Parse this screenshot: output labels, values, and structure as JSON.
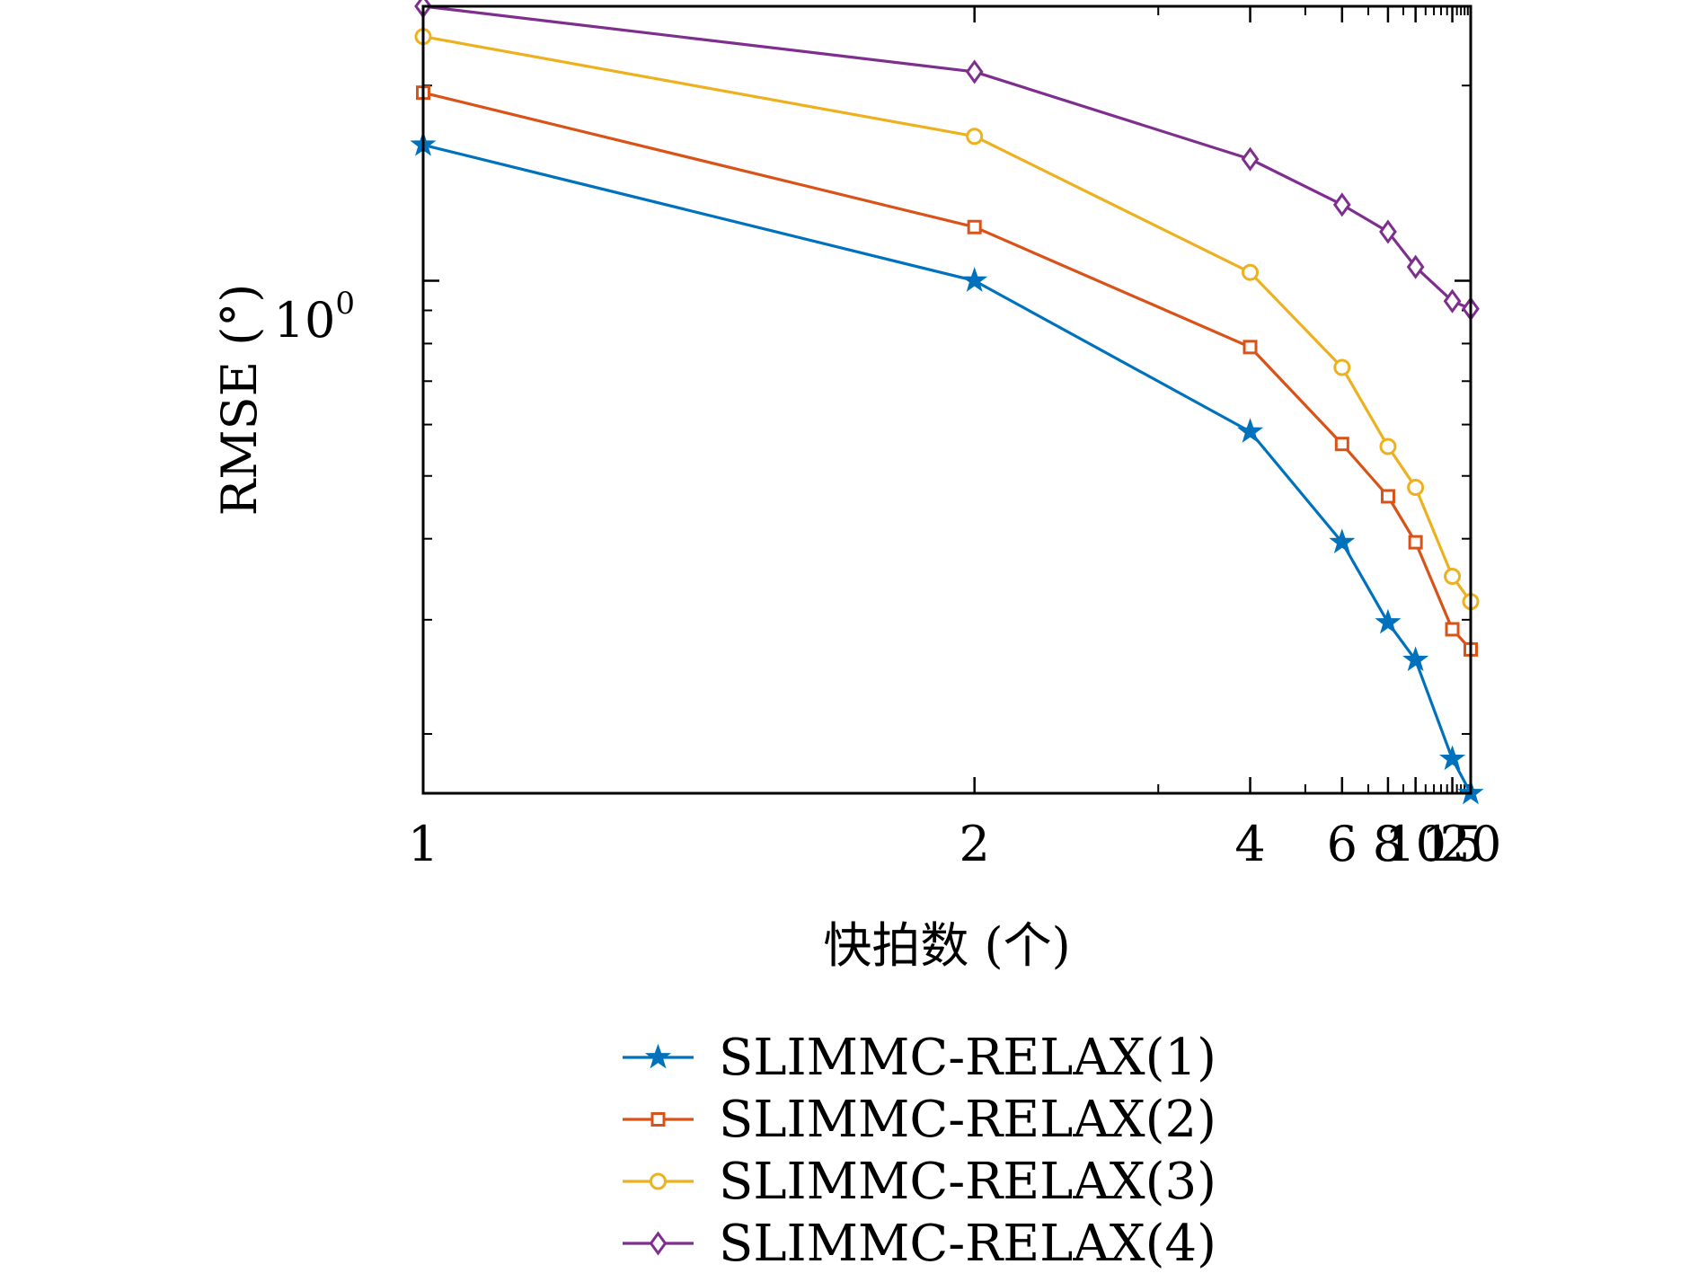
{
  "chart_data": {
    "type": "line",
    "title": "",
    "xlabel": "快拍数 (个)",
    "ylabel": "RMSE (°)",
    "x": [
      1,
      2,
      4,
      6,
      8,
      10,
      15,
      20
    ],
    "x_ticks": [
      1,
      2,
      4,
      6,
      8,
      10,
      15,
      20
    ],
    "x_tick_labels": [
      "1",
      "2",
      "4",
      "6",
      "8",
      "10",
      "15",
      "20"
    ],
    "xlim": [
      1,
      20
    ],
    "x_scale": "reciprocal",
    "y_scale": "log",
    "ylim": [
      0.162,
      2.65
    ],
    "y_tick_label": {
      "base": "10",
      "exponent": "0"
    },
    "grid": false,
    "legend_position": "bottom",
    "series": [
      {
        "name": "SLIMMC-RELAX(1)",
        "color": "#0072BD",
        "marker": "star",
        "values": [
          1.62,
          1.0,
          0.585,
          0.395,
          0.297,
          0.26,
          0.183,
          0.162
        ]
      },
      {
        "name": "SLIMMC-RELAX(2)",
        "color": "#D95319",
        "marker": "square",
        "values": [
          1.95,
          1.21,
          0.79,
          0.56,
          0.465,
          0.395,
          0.29,
          0.27
        ]
      },
      {
        "name": "SLIMMC-RELAX(3)",
        "color": "#EDB120",
        "marker": "circle",
        "values": [
          2.38,
          1.67,
          1.03,
          0.735,
          0.555,
          0.48,
          0.35,
          0.32
        ]
      },
      {
        "name": "SLIMMC-RELAX(4)",
        "color": "#7E2F8E",
        "marker": "diamond",
        "values": [
          2.65,
          2.1,
          1.54,
          1.31,
          1.19,
          1.05,
          0.93,
          0.905
        ]
      }
    ]
  }
}
